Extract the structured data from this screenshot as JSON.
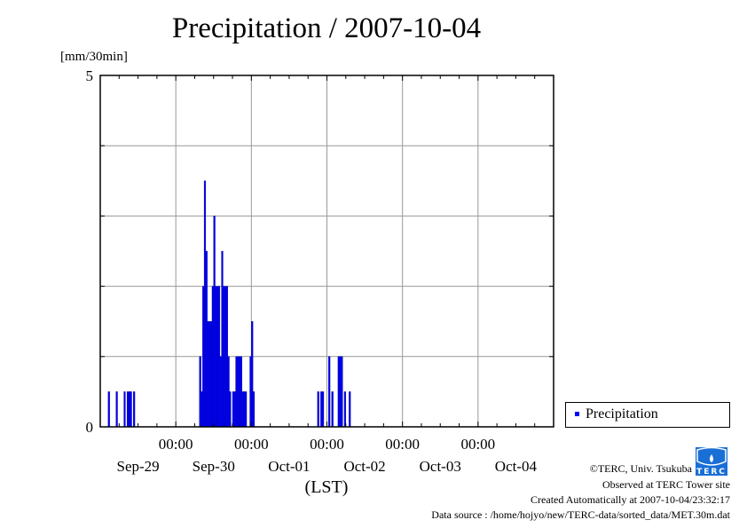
{
  "chart_data": {
    "type": "bar",
    "title": "Precipitation / 2007-10-04",
    "ylabel": "[mm/30min]",
    "xlabel": "(LST)",
    "ylim": [
      0,
      5
    ],
    "yticks": [
      {
        "v": 0,
        "label": "0"
      },
      {
        "v": 5,
        "label": "5"
      }
    ],
    "xlim": [
      "2007-09-29T00:00",
      "2007-10-05T00:00"
    ],
    "xtick_time_labels": [
      "00:00",
      "00:00",
      "00:00",
      "00:00",
      "00:00"
    ],
    "xtick_date_labels": [
      "Sep-29",
      "Sep-30",
      "Oct-01",
      "Oct-02",
      "Oct-03",
      "Oct-04"
    ],
    "grid": true,
    "legend": {
      "placement": "right",
      "entries": [
        "Precipitation"
      ]
    },
    "series": [
      {
        "name": "Precipitation",
        "color": "#0000ff",
        "points": [
          [
            "2007-09-29T02:30",
            0.5
          ],
          [
            "2007-09-29T05:00",
            0.5
          ],
          [
            "2007-09-29T07:30",
            0.5
          ],
          [
            "2007-09-29T08:30",
            0.5
          ],
          [
            "2007-09-29T09:00",
            0.5
          ],
          [
            "2007-09-29T09:30",
            0.5
          ],
          [
            "2007-09-29T10:30",
            0.5
          ],
          [
            "2007-09-30T07:30",
            1.0
          ],
          [
            "2007-09-30T08:00",
            0.5
          ],
          [
            "2007-09-30T08:30",
            2.0
          ],
          [
            "2007-09-30T09:00",
            3.5
          ],
          [
            "2007-09-30T09:30",
            2.5
          ],
          [
            "2007-09-30T10:00",
            1.5
          ],
          [
            "2007-09-30T10:30",
            1.5
          ],
          [
            "2007-09-30T11:00",
            1.5
          ],
          [
            "2007-09-30T11:30",
            2.0
          ],
          [
            "2007-09-30T12:00",
            3.0
          ],
          [
            "2007-09-30T12:30",
            2.0
          ],
          [
            "2007-09-30T13:00",
            2.0
          ],
          [
            "2007-09-30T13:30",
            2.0
          ],
          [
            "2007-09-30T14:00",
            1.0
          ],
          [
            "2007-09-30T14:30",
            2.5
          ],
          [
            "2007-09-30T15:00",
            2.0
          ],
          [
            "2007-09-30T15:30",
            2.0
          ],
          [
            "2007-09-30T16:00",
            2.0
          ],
          [
            "2007-09-30T16:30",
            1.0
          ],
          [
            "2007-09-30T17:00",
            0.5
          ],
          [
            "2007-09-30T18:00",
            0.5
          ],
          [
            "2007-09-30T18:30",
            0.5
          ],
          [
            "2007-09-30T19:00",
            1.0
          ],
          [
            "2007-09-30T19:30",
            1.0
          ],
          [
            "2007-09-30T20:00",
            1.0
          ],
          [
            "2007-09-30T20:30",
            1.0
          ],
          [
            "2007-09-30T21:00",
            0.5
          ],
          [
            "2007-09-30T21:30",
            0.5
          ],
          [
            "2007-09-30T22:00",
            0.5
          ],
          [
            "2007-09-30T23:30",
            1.0
          ],
          [
            "2007-10-01T00:00",
            1.5
          ],
          [
            "2007-10-01T00:30",
            0.5
          ],
          [
            "2007-10-01T21:00",
            0.5
          ],
          [
            "2007-10-01T22:00",
            0.5
          ],
          [
            "2007-10-01T22:30",
            0.5
          ],
          [
            "2007-10-02T00:30",
            1.0
          ],
          [
            "2007-10-02T01:30",
            0.5
          ],
          [
            "2007-10-02T03:30",
            1.0
          ],
          [
            "2007-10-02T04:00",
            1.0
          ],
          [
            "2007-10-02T04:30",
            1.0
          ],
          [
            "2007-10-02T05:30",
            0.5
          ],
          [
            "2007-10-02T07:00",
            0.5
          ]
        ]
      }
    ]
  },
  "footer": {
    "copyright": "©TERC, Univ. Tsukuba",
    "observed": "Observed at TERC Tower site",
    "created": "Created Automatically at 2007-10-04/23:32:17",
    "source": "Data source : /home/hojyo/new/TERC-data/sorted_data/MET.30m.dat",
    "logo_text": "TERC"
  }
}
